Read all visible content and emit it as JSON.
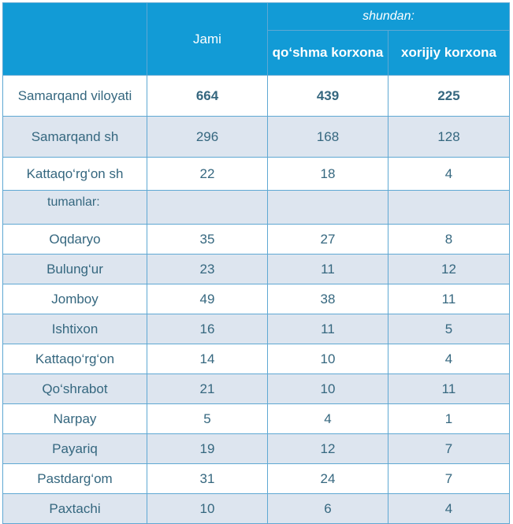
{
  "header": {
    "jami": "Jami",
    "shundan": "shundan:",
    "qoshma": "qo‘shma korxona",
    "xorijiy": "xorijiy korxona"
  },
  "total": {
    "name": "Samarqand viloyati",
    "jami": "664",
    "qoshma": "439",
    "xorijiy": "225"
  },
  "rows_top": [
    {
      "name": "Samarqand sh",
      "jami": "296",
      "qoshma": "168",
      "xorijiy": "128"
    },
    {
      "name": "Kattaqo‘rg‘on sh",
      "jami": "22",
      "qoshma": "18",
      "xorijiy": "4"
    }
  ],
  "subheading": "tumanlar:",
  "districts": [
    {
      "name": "Oqdaryo",
      "jami": "35",
      "qoshma": "27",
      "xorijiy": "8"
    },
    {
      "name": "Bulung‘ur",
      "jami": "23",
      "qoshma": "11",
      "xorijiy": "12"
    },
    {
      "name": "Jomboy",
      "jami": "49",
      "qoshma": "38",
      "xorijiy": "11"
    },
    {
      "name": "Ishtixon",
      "jami": "16",
      "qoshma": "11",
      "xorijiy": "5"
    },
    {
      "name": "Kattaqo‘rg‘on",
      "jami": "14",
      "qoshma": "10",
      "xorijiy": "4"
    },
    {
      "name": "Qo‘shrabot",
      "jami": "21",
      "qoshma": "10",
      "xorijiy": "11"
    },
    {
      "name": "Narpay",
      "jami": "5",
      "qoshma": "4",
      "xorijiy": "1"
    },
    {
      "name": "Payariq",
      "jami": "19",
      "qoshma": "12",
      "xorijiy": "7"
    },
    {
      "name": "Pastdarg‘om",
      "jami": "31",
      "qoshma": "24",
      "xorijiy": "7"
    },
    {
      "name": "Paxtachi",
      "jami": "10",
      "qoshma": "6",
      "xorijiy": "4"
    }
  ]
}
